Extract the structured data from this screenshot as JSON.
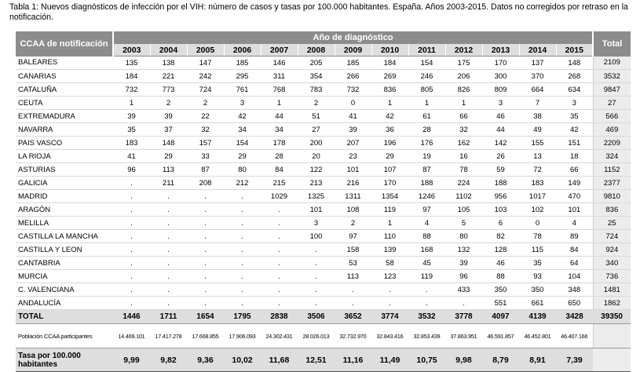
{
  "caption": "Tabla 1: Nuevos diagnósticos de infección por el VIH: número de casos y tasas por 100.000 habitantes. España. Años 2003-2015. Datos no corregidos por retraso en la notificación.",
  "header": {
    "ccaa": "CCAA de notificación",
    "year_group": "Año de diagnóstico",
    "total": "Total",
    "years": [
      "2003",
      "2004",
      "2005",
      "2006",
      "2007",
      "2008",
      "2009",
      "2010",
      "2011",
      "2012",
      "2013",
      "2014",
      "2015"
    ]
  },
  "rows": [
    {
      "name": "BALEARES",
      "values": [
        "135",
        "138",
        "147",
        "185",
        "146",
        "205",
        "185",
        "184",
        "154",
        "175",
        "170",
        "137",
        "148"
      ],
      "total": "2109"
    },
    {
      "name": "CANARIAS",
      "values": [
        "184",
        "221",
        "242",
        "295",
        "311",
        "354",
        "266",
        "269",
        "246",
        "206",
        "300",
        "370",
        "268"
      ],
      "total": "3532"
    },
    {
      "name": "CATALUÑA",
      "values": [
        "732",
        "773",
        "724",
        "761",
        "768",
        "783",
        "732",
        "836",
        "805",
        "826",
        "809",
        "664",
        "634"
      ],
      "total": "9847"
    },
    {
      "name": "CEUTA",
      "values": [
        "1",
        "2",
        "2",
        "3",
        "1",
        "2",
        "0",
        "1",
        "1",
        "1",
        "3",
        "7",
        "3"
      ],
      "total": "27"
    },
    {
      "name": "EXTREMADURA",
      "values": [
        "39",
        "39",
        "22",
        "42",
        "44",
        "51",
        "41",
        "42",
        "61",
        "66",
        "46",
        "38",
        "35"
      ],
      "total": "566"
    },
    {
      "name": "NAVARRA",
      "values": [
        "35",
        "37",
        "32",
        "34",
        "34",
        "27",
        "39",
        "36",
        "28",
        "32",
        "44",
        "49",
        "42"
      ],
      "total": "469"
    },
    {
      "name": "PAIS VASCO",
      "values": [
        "183",
        "148",
        "157",
        "154",
        "178",
        "200",
        "207",
        "196",
        "176",
        "162",
        "142",
        "155",
        "151"
      ],
      "total": "2209"
    },
    {
      "name": "LA RIOJA",
      "values": [
        "41",
        "29",
        "33",
        "29",
        "28",
        "20",
        "23",
        "29",
        "19",
        "16",
        "26",
        "13",
        "18"
      ],
      "total": "324"
    },
    {
      "name": "ASTURIAS",
      "values": [
        "96",
        "113",
        "87",
        "80",
        "84",
        "122",
        "101",
        "107",
        "87",
        "78",
        "59",
        "72",
        "66"
      ],
      "total": "1152"
    },
    {
      "name": "GALICIA",
      "values": [
        ".",
        "211",
        "208",
        "212",
        "215",
        "213",
        "216",
        "170",
        "188",
        "224",
        "188",
        "183",
        "149"
      ],
      "total": "2377"
    },
    {
      "name": "MADRID",
      "values": [
        ".",
        ".",
        ".",
        ".",
        "1029",
        "1325",
        "1311",
        "1354",
        "1246",
        "1102",
        "956",
        "1017",
        "470"
      ],
      "total": "9810"
    },
    {
      "name": "ARAGÓN",
      "values": [
        ".",
        ".",
        ".",
        ".",
        ".",
        "101",
        "108",
        "119",
        "97",
        "105",
        "103",
        "102",
        "101"
      ],
      "total": "836"
    },
    {
      "name": "MELILLA",
      "values": [
        ".",
        ".",
        ".",
        ".",
        ".",
        "3",
        "2",
        "1",
        "4",
        "5",
        "6",
        "0",
        "4"
      ],
      "total": "25"
    },
    {
      "name": "CASTILLA LA MANCHA",
      "values": [
        ".",
        ".",
        ".",
        ".",
        ".",
        "100",
        "97",
        "110",
        "88",
        "80",
        "82",
        "78",
        "89"
      ],
      "total": "724"
    },
    {
      "name": "CASTILLA Y LEON",
      "values": [
        ".",
        ".",
        ".",
        ".",
        ".",
        ".",
        "158",
        "139",
        "168",
        "132",
        "128",
        "115",
        "84"
      ],
      "total": "924"
    },
    {
      "name": "CANTABRIA",
      "values": [
        ".",
        ".",
        ".",
        ".",
        ".",
        ".",
        "53",
        "58",
        "45",
        "39",
        "46",
        "35",
        "64"
      ],
      "total": "340"
    },
    {
      "name": "MURCIA",
      "values": [
        ".",
        ".",
        ".",
        ".",
        ".",
        ".",
        "113",
        "123",
        "119",
        "96",
        "88",
        "93",
        "104"
      ],
      "total": "736"
    },
    {
      "name": "C. VALENCIANA",
      "values": [
        ".",
        ".",
        ".",
        ".",
        ".",
        ".",
        ".",
        ".",
        ".",
        "433",
        "350",
        "350",
        "348"
      ],
      "total": "1481"
    },
    {
      "name": "ANDALUCÍA",
      "values": [
        ".",
        ".",
        ".",
        ".",
        ".",
        ".",
        ".",
        ".",
        ".",
        ".",
        "551",
        "661",
        "650"
      ],
      "total": "1862"
    }
  ],
  "total_row": {
    "name": "TOTAL",
    "values": [
      "1446",
      "1711",
      "1654",
      "1795",
      "2838",
      "3506",
      "3652",
      "3774",
      "3532",
      "3778",
      "4097",
      "4139",
      "3428"
    ],
    "total": "39350"
  },
  "population_row": {
    "name": "Población CCAA participantes",
    "values": [
      "14.469.101",
      "17.417.278",
      "17.668.855",
      "17.906.093",
      "24.302.431",
      "28.026.013",
      "32.732.970",
      "32.843.416",
      "32.853.439",
      "37.863.951",
      "46.591.857",
      "46.452.801",
      "46.407.166"
    ],
    "total": ""
  },
  "rate_row": {
    "name": "Tasa por 100.000 habitantes",
    "values": [
      "9,99",
      "9,82",
      "9,36",
      "10,02",
      "11,68",
      "12,51",
      "11,16",
      "11,49",
      "10,75",
      "9,98",
      "8,79",
      "8,91",
      "7,39"
    ],
    "total": ""
  }
}
